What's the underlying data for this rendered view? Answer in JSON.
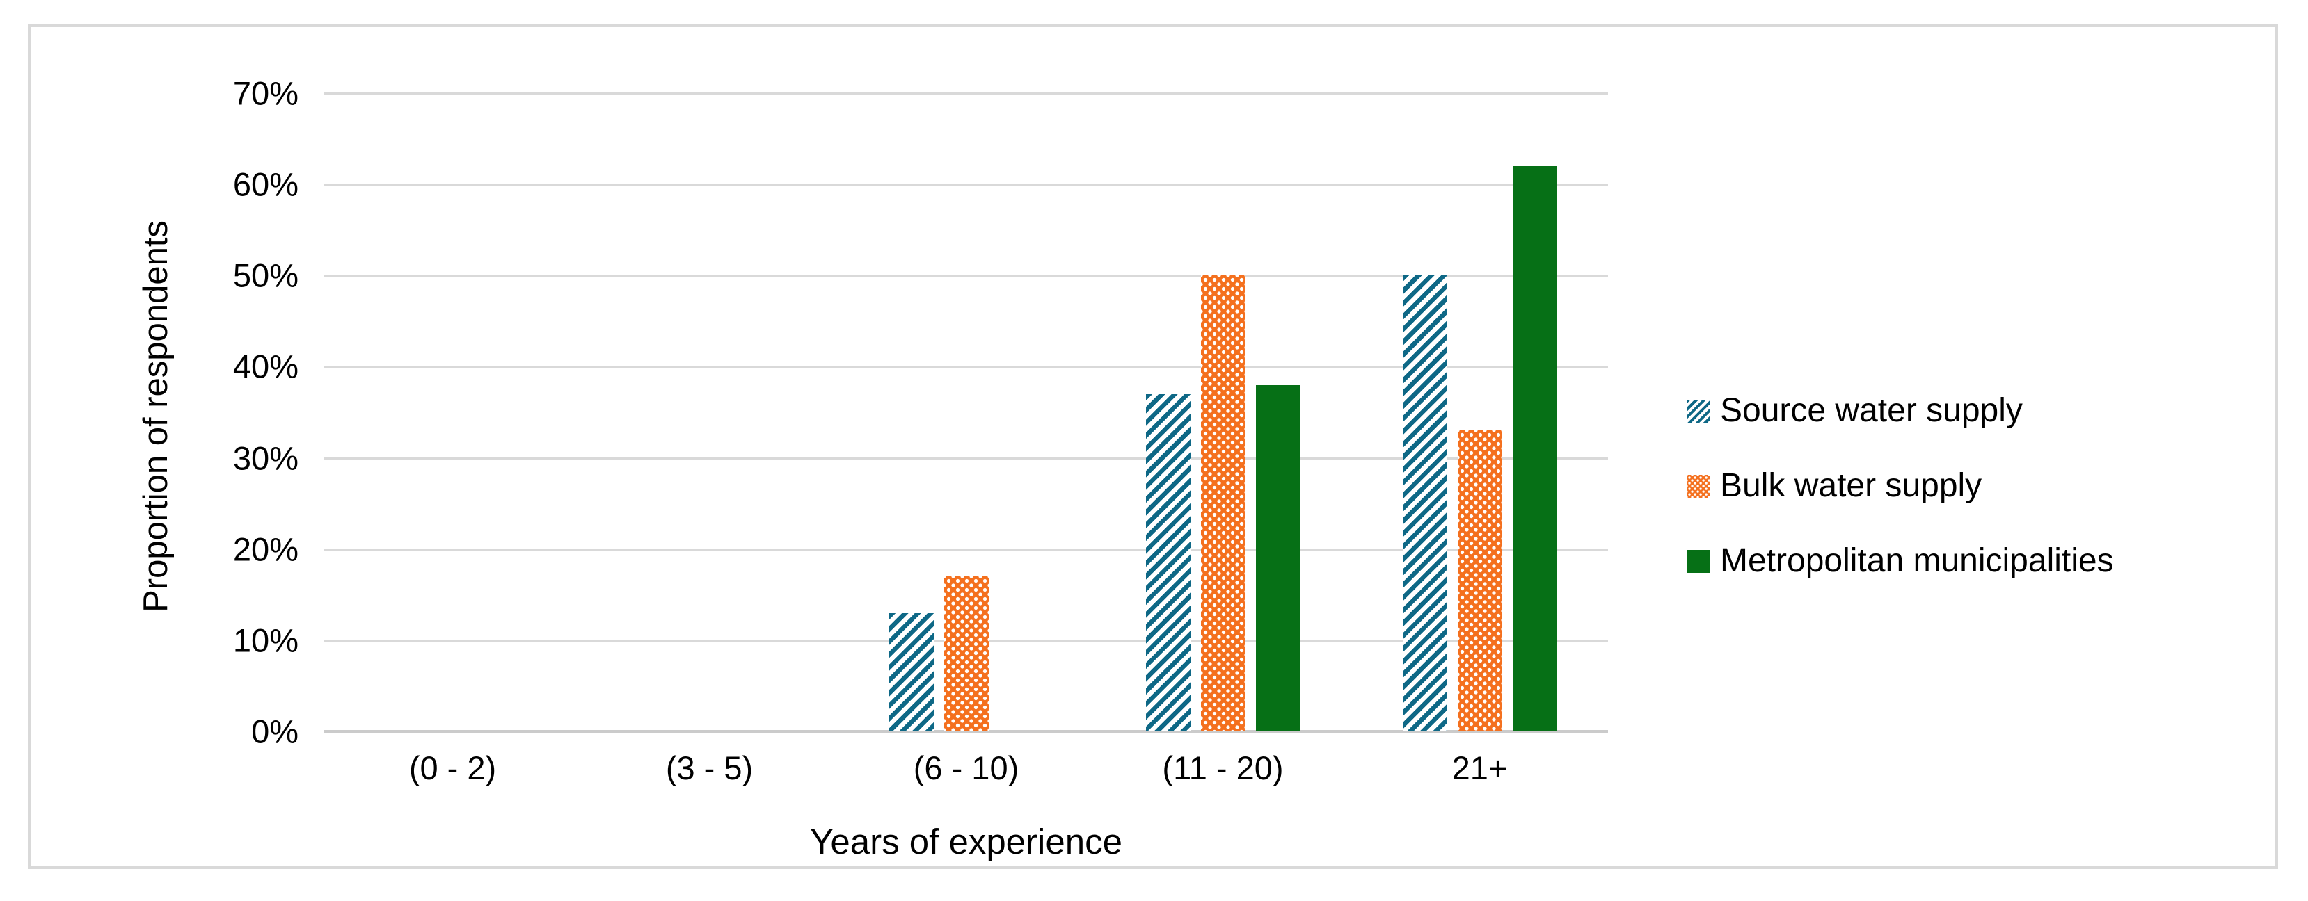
{
  "figure": {
    "background": "#ffffff",
    "border_color": "#d9d9d9"
  },
  "chart_data": {
    "type": "bar",
    "title": "",
    "categories": [
      "(0 - 2)",
      "(3 - 5)",
      "(6 - 10)",
      "(11 - 20)",
      "21+"
    ],
    "series": [
      {
        "name": "Source water supply",
        "pattern": "diagonal-stripes",
        "color": "#0e6886",
        "values": [
          0,
          0,
          13,
          37,
          50
        ]
      },
      {
        "name": "Bulk water supply",
        "pattern": "dots",
        "color": "#f4701e",
        "values": [
          0,
          0,
          17,
          50,
          33
        ]
      },
      {
        "name": "Metropolitan municipalities",
        "pattern": "solid",
        "color": "#067016",
        "values": [
          0,
          0,
          0,
          38,
          62
        ]
      }
    ],
    "xlabel": "Years of experience",
    "ylabel": "Proportion of respondents",
    "ylim": [
      0,
      70
    ],
    "yticks": [
      {
        "value": 0,
        "label": "0%"
      },
      {
        "value": 10,
        "label": "10%"
      },
      {
        "value": 20,
        "label": "20%"
      },
      {
        "value": 30,
        "label": "30%"
      },
      {
        "value": 40,
        "label": "40%"
      },
      {
        "value": 50,
        "label": "50%"
      },
      {
        "value": 60,
        "label": "60%"
      },
      {
        "value": 70,
        "label": "70%"
      }
    ],
    "grid": true,
    "gridline_color": "#d9d9d9",
    "axis_line_color": "#cbcbcb",
    "legend_position": "right"
  }
}
